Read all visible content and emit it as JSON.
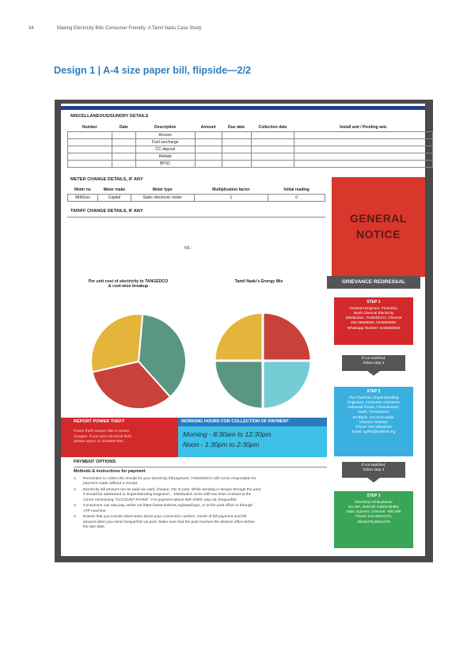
{
  "header": {
    "page_number": "34",
    "title": "Making Electricity Bills Consumer Friendly: A Tamil Nadu Case Study"
  },
  "design_title": "Design 1 | A-4 size paper bill, flipside—2/2",
  "misc": {
    "heading": "MISCELLANEOUS/SUNDRY DETAILS",
    "columns": [
      "Number",
      "Date",
      "Description",
      "Amount",
      "Due date",
      "Collection date",
      "Install amt / Pending amt."
    ],
    "rows": [
      "Arrears",
      "Fuel surcharge",
      "CC deposit",
      "Rebate",
      "BPSC"
    ]
  },
  "meter": {
    "heading": "METER CHANGE DETAILS, IF ANY",
    "columns": [
      "Meter no",
      "Meter make",
      "Meter type",
      "Multiplication factor",
      "Initial reading"
    ],
    "row": [
      "8460xxx",
      "Capital",
      "Static electronic meter",
      "1",
      "0"
    ]
  },
  "tariff": {
    "heading": "TARIFF CHANGE DETAILS, IF ANY",
    "nil": "- NIL-"
  },
  "general_notice": {
    "line1": "GENERAL",
    "line2": "NOTICE"
  },
  "charts": {
    "left_title1": "Per unit cost of electricity to TANGEDCO",
    "left_title2": "& cost-wise breakup",
    "right_title": "Tamil Nadu's Energy Mix"
  },
  "chart_data": [
    {
      "type": "pie",
      "title": "Per unit cost of electricity to TANGEDCO & cost-wise breakup",
      "values": [
        37,
        33,
        30
      ],
      "colors": [
        "#5a9684",
        "#c8413a",
        "#e5b43a"
      ]
    },
    {
      "type": "pie",
      "title": "Tamil Nadu's Energy Mix",
      "values": [
        25,
        25,
        25,
        25
      ],
      "colors": [
        "#c8413a",
        "#74cdd4",
        "#5a9684",
        "#e5b43a"
      ]
    }
  ],
  "grievance": {
    "heading": "GRIEVANCE REDRESSAL",
    "step1": {
      "title": "STEP 1",
      "lines": [
        "Assistant Engineer, Perambur,",
        "North Chennai Electricity",
        "Distribution, TANGEDCO, Chennai",
        "044-25508050, 9445850981",
        "Whatsapp Number: 9445850829"
      ]
    },
    "not_satisfied_1": [
      "If not satisfied,",
      "follow step 2"
    ],
    "step2": {
      "title": "STEP 2",
      "lines": [
        "The Chairman (Superintending",
        "Engineer), Consumer Grievance",
        "redressal Forum, Chennai EDS,",
        "North, TANGEDCO",
        "SA Block, 144 Anna Salai,",
        "Chennai- 600002,",
        "Phone: 044-28521833",
        "Email: cgrfhn@tnebnet.org"
      ]
    },
    "not_satisfied_2": [
      "If not satisfied,",
      "follow step 3"
    ],
    "step3": {
      "title": "STEP 3",
      "lines": [
        "Electricity Ombudsman",
        "No.19A, Rukmini Lakshmipathy",
        "Salai, Egmore, Chennai - 600 008",
        "Phone: 044-28411376,",
        "28411378,28411379"
      ]
    }
  },
  "theft": {
    "heading": "REPORT POWER THEFT",
    "lines": [
      "Power theft causes hike in power",
      "charges. If you spot electrical theft,",
      "please report on 9445857591."
    ]
  },
  "hours": {
    "heading": "WORKING HOURS FOR COLLECTION OF PAYMENT",
    "morning": "Morning - 8:30am to 12:30pm",
    "noon": "Noon - 1:30pm to 2:30pm"
  },
  "payment": {
    "heading": "PAYMENT OPTIONS",
    "subheading": "Methods & instructions for payment",
    "items": [
      {
        "n": "1.",
        "lines": [
          "Remember to collect the receipt for your electricity bill payment. TANGEDCO will not be responsible for",
          "payment made without a receipt."
        ]
      },
      {
        "n": "2.",
        "lines": [
          "Electricity bill amount can be paid via cash, cheque, DD or post. While sending a cheque through the post,",
          "it should be addressed to Superintending Engineer/... Distribution circle with two lines crossed at the",
          "corner mentioning \"ACCOUNT PAYEE\". For payment above INR 2000/- pay via cheque/DD."
        ]
      },
      {
        "n": "3.",
        "lines": [
          "Consumers can also pay online via https://www.tnebnet.org/awp/login, or at the post office or through",
          "ATP machine."
        ]
      },
      {
        "n": "4.",
        "lines": [
          "Ensure that you include information about your connection number, month of bill payment and bill",
          "amount when you send cheque/DD via post. Make sure that the post reaches the division office before",
          "the due date."
        ]
      }
    ]
  }
}
